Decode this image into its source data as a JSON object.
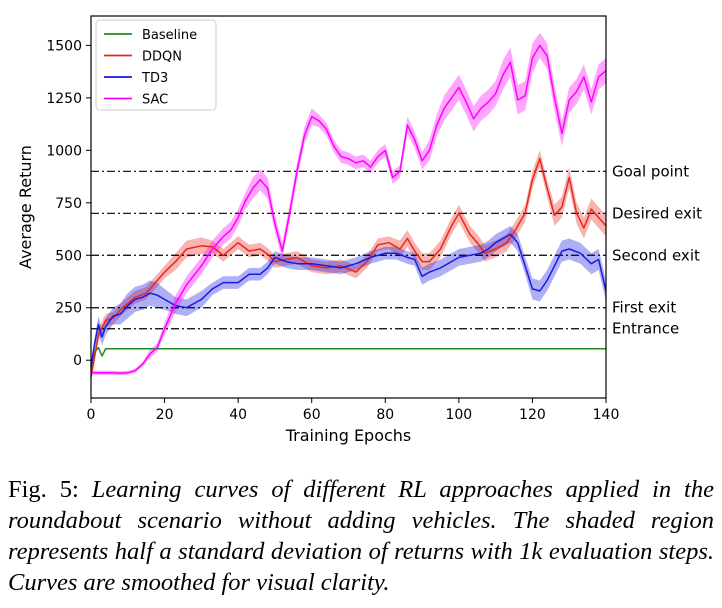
{
  "chart_data": {
    "type": "line",
    "title": "",
    "xlabel": "Training Epochs",
    "ylabel": "Average Return",
    "xlim": [
      0,
      140
    ],
    "ylim": [
      -180,
      1640
    ],
    "xticks": [
      0,
      20,
      40,
      60,
      80,
      100,
      120,
      140
    ],
    "yticks": [
      0,
      250,
      500,
      750,
      1000,
      1250,
      1500
    ],
    "legend_position": "top-left",
    "series": [
      {
        "name": "Baseline",
        "color": "#228b22",
        "x": [
          0,
          1,
          2,
          3,
          4,
          5,
          140
        ],
        "y": [
          -60,
          40,
          60,
          20,
          55,
          55,
          55
        ],
        "halfstd": [
          0,
          0,
          0,
          0,
          0,
          0,
          0
        ]
      },
      {
        "name": "DDQN",
        "color": "#e8281e",
        "x": [
          0,
          2,
          4,
          6,
          8,
          10,
          12,
          15,
          18,
          20,
          23,
          26,
          30,
          33,
          36,
          40,
          43,
          46,
          48,
          50,
          53,
          56,
          60,
          64,
          68,
          72,
          75,
          78,
          81,
          84,
          86,
          88,
          90,
          92,
          95,
          98,
          100,
          103,
          105,
          107,
          110,
          113,
          115,
          118,
          120,
          122,
          124,
          126,
          128,
          130,
          132,
          134,
          136,
          138,
          140
        ],
        "y": [
          -80,
          120,
          190,
          200,
          240,
          270,
          300,
          320,
          380,
          420,
          470,
          530,
          545,
          540,
          500,
          560,
          520,
          530,
          505,
          470,
          480,
          490,
          450,
          440,
          450,
          420,
          470,
          550,
          560,
          530,
          580,
          520,
          470,
          470,
          530,
          640,
          700,
          600,
          560,
          510,
          530,
          560,
          610,
          700,
          860,
          960,
          820,
          690,
          730,
          870,
          700,
          630,
          720,
          680,
          640
        ],
        "halfstd": [
          30,
          30,
          30,
          30,
          30,
          30,
          30,
          30,
          30,
          30,
          40,
          40,
          40,
          30,
          30,
          30,
          30,
          30,
          30,
          30,
          30,
          30,
          30,
          30,
          30,
          30,
          30,
          30,
          30,
          40,
          40,
          40,
          40,
          40,
          40,
          40,
          40,
          40,
          40,
          40,
          40,
          40,
          40,
          40,
          40,
          40,
          40,
          50,
          50,
          50,
          50,
          50,
          50,
          50,
          50
        ]
      },
      {
        "name": "TD3",
        "color": "#1a1ae6",
        "x": [
          0,
          1,
          2,
          3,
          4,
          6,
          8,
          10,
          12,
          14,
          16,
          18,
          20,
          23,
          26,
          30,
          33,
          36,
          40,
          43,
          46,
          48,
          50,
          53,
          56,
          60,
          64,
          68,
          72,
          76,
          80,
          83,
          86,
          88,
          90,
          92,
          95,
          98,
          100,
          103,
          106,
          108,
          110,
          112,
          114,
          116,
          118,
          120,
          122,
          124,
          126,
          128,
          130,
          133,
          136,
          138,
          140
        ],
        "y": [
          -30,
          80,
          170,
          110,
          160,
          210,
          220,
          260,
          290,
          300,
          320,
          310,
          290,
          260,
          250,
          290,
          340,
          370,
          370,
          410,
          410,
          440,
          490,
          470,
          460,
          460,
          450,
          440,
          460,
          490,
          510,
          510,
          490,
          480,
          400,
          420,
          440,
          470,
          490,
          500,
          510,
          530,
          560,
          580,
          600,
          560,
          450,
          340,
          330,
          380,
          450,
          520,
          530,
          510,
          460,
          480,
          330
        ],
        "halfstd": [
          20,
          30,
          40,
          40,
          40,
          40,
          50,
          60,
          60,
          60,
          60,
          60,
          50,
          40,
          40,
          40,
          30,
          30,
          30,
          30,
          30,
          30,
          30,
          30,
          30,
          30,
          30,
          30,
          30,
          30,
          30,
          30,
          30,
          30,
          40,
          40,
          40,
          40,
          40,
          40,
          40,
          40,
          40,
          40,
          40,
          40,
          40,
          50,
          50,
          50,
          50,
          50,
          50,
          50,
          50,
          50,
          50
        ]
      },
      {
        "name": "SAC",
        "color": "#ff00ff",
        "x": [
          0,
          2,
          4,
          6,
          8,
          10,
          12,
          14,
          16,
          18,
          20,
          23,
          26,
          30,
          33,
          36,
          38,
          40,
          42,
          44,
          46,
          48,
          50,
          52,
          54,
          56,
          58,
          60,
          62,
          64,
          66,
          68,
          70,
          72,
          74,
          76,
          78,
          80,
          82,
          84,
          86,
          88,
          90,
          92,
          94,
          96,
          98,
          100,
          102,
          104,
          106,
          108,
          110,
          112,
          114,
          116,
          118,
          120,
          122,
          124,
          126,
          128,
          130,
          132,
          134,
          136,
          138,
          140
        ],
        "y": [
          -60,
          -60,
          -60,
          -60,
          -62,
          -60,
          -50,
          -20,
          30,
          60,
          150,
          270,
          360,
          450,
          530,
          590,
          620,
          680,
          760,
          820,
          860,
          820,
          650,
          520,
          700,
          900,
          1070,
          1160,
          1140,
          1100,
          1020,
          970,
          960,
          940,
          950,
          920,
          970,
          1000,
          870,
          900,
          1120,
          1050,
          950,
          1000,
          1120,
          1200,
          1250,
          1300,
          1230,
          1150,
          1200,
          1230,
          1270,
          1360,
          1420,
          1240,
          1260,
          1440,
          1500,
          1450,
          1250,
          1080,
          1240,
          1280,
          1350,
          1230,
          1350,
          1380
        ],
        "halfstd": [
          10,
          10,
          10,
          10,
          10,
          10,
          10,
          10,
          20,
          20,
          30,
          40,
          40,
          40,
          40,
          40,
          40,
          40,
          40,
          50,
          50,
          50,
          40,
          40,
          40,
          40,
          40,
          40,
          30,
          30,
          30,
          30,
          30,
          30,
          30,
          30,
          30,
          30,
          30,
          30,
          40,
          40,
          40,
          50,
          50,
          60,
          60,
          60,
          60,
          60,
          60,
          60,
          60,
          70,
          70,
          70,
          70,
          70,
          60,
          60,
          60,
          60,
          60,
          60,
          60,
          60,
          60,
          60
        ]
      }
    ],
    "reference_lines": [
      {
        "label": "Goal point",
        "y": 900
      },
      {
        "label": "Desired exit",
        "y": 700
      },
      {
        "label": "Second exit",
        "y": 500
      },
      {
        "label": "First exit",
        "y": 250
      },
      {
        "label": "Entrance",
        "y": 150
      }
    ]
  },
  "caption": {
    "prefix": "Fig. 5:",
    "text": "Learning curves of different RL approaches applied in the roundabout scenario without adding vehicles. The shaded region represents half a standard deviation of returns with 1k evaluation steps. Curves are smoothed for visual clarity."
  }
}
